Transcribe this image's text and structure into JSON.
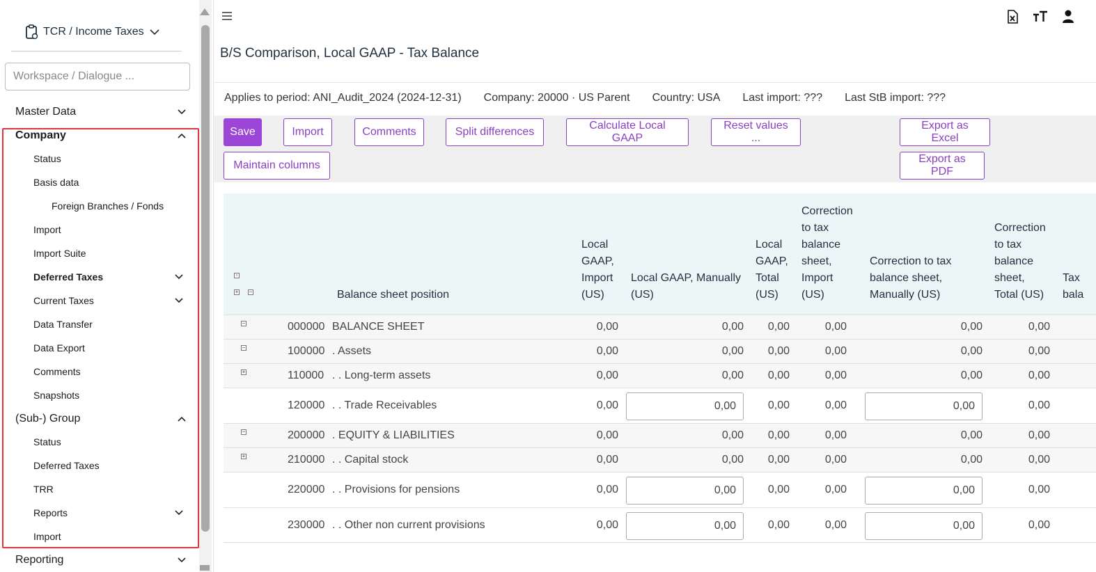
{
  "app": {
    "title": "TCR / Income Taxes",
    "workspace_placeholder": "Workspace / Dialogue ..."
  },
  "sidebar": {
    "master_data": "Master Data",
    "company": {
      "label": "Company",
      "items": [
        "Status",
        "Basis data",
        "Foreign Branches / Fonds",
        "Import",
        "Import Suite",
        "Deferred Taxes",
        "Current Taxes",
        "Data Transfer",
        "Data Export",
        "Comments",
        "Snapshots"
      ]
    },
    "sub_group": {
      "label": "(Sub-) Group",
      "items": [
        "Status",
        "Deferred Taxes",
        "TRR",
        "Reports",
        "Import"
      ]
    },
    "reporting": "Reporting"
  },
  "header": {
    "title": "B/S Comparison, Local GAAP - Tax Balance"
  },
  "info": {
    "period": "Applies to period: ANI_Audit_2024 (2024-12-31)",
    "company": "Company: 20000 · US Parent",
    "country": "Country: USA",
    "last_import": "Last import: ???",
    "last_stb_import": "Last StB import: ???"
  },
  "toolbar": {
    "save": "Save",
    "import": "Import",
    "comments": "Comments",
    "split": "Split differences",
    "calc": "Calculate Local GAAP",
    "reset": "Reset values ...",
    "excel": "Export as Excel",
    "maintain": "Maintain columns",
    "pdf": "Export as PDF"
  },
  "table": {
    "headers": {
      "position": "Balance sheet position",
      "lg_import": "Local\nGAAP,\nImport\n(US)",
      "lg_manual": "Local GAAP, Manually\n(US)",
      "lg_total": "Local\nGAAP,\nTotal\n(US)",
      "ct_import": "Correction\nto tax\nbalance\nsheet,\nImport\n(US)",
      "ct_manual": "Correction to tax\nbalance sheet,\nManually (US)",
      "ct_total": "Correction\nto tax\nbalance\nsheet,\nTotal (US)",
      "tax": "Tax\nbala"
    },
    "rows": [
      {
        "code": "000000",
        "label": "BALANCE SHEET",
        "exp": "−",
        "edit": false,
        "vals": [
          "0,00",
          "0,00",
          "0,00",
          "0,00",
          "0,00",
          "0,00"
        ]
      },
      {
        "code": "100000",
        "label": ". Assets",
        "exp": "−",
        "edit": false,
        "vals": [
          "0,00",
          "0,00",
          "0,00",
          "0,00",
          "0,00",
          "0,00"
        ]
      },
      {
        "code": "110000",
        "label": ". . Long-term assets",
        "exp": "+",
        "edit": false,
        "vals": [
          "0,00",
          "0,00",
          "0,00",
          "0,00",
          "0,00",
          "0,00"
        ]
      },
      {
        "code": "120000",
        "label": ". . Trade Receivables",
        "exp": "",
        "edit": true,
        "vals": [
          "0,00",
          "0,00",
          "0,00",
          "0,00",
          "0,00",
          "0,00"
        ]
      },
      {
        "code": "200000",
        "label": ". EQUITY & LIABILITIES",
        "exp": "−",
        "edit": false,
        "vals": [
          "0,00",
          "0,00",
          "0,00",
          "0,00",
          "0,00",
          "0,00"
        ]
      },
      {
        "code": "210000",
        "label": ". . Capital stock",
        "exp": "+",
        "edit": false,
        "vals": [
          "0,00",
          "0,00",
          "0,00",
          "0,00",
          "0,00",
          "0,00"
        ]
      },
      {
        "code": "220000",
        "label": ". . Provisions for pensions",
        "exp": "",
        "edit": true,
        "vals": [
          "0,00",
          "0,00",
          "0,00",
          "0,00",
          "0,00",
          "0,00"
        ]
      },
      {
        "code": "230000",
        "label": ". . Other non current provisions",
        "exp": "",
        "edit": true,
        "vals": [
          "0,00",
          "0,00",
          "0,00",
          "0,00",
          "0,00",
          "0,00"
        ]
      }
    ]
  },
  "icons": [
    "clipboard-icon",
    "chevron-down-icon",
    "menu-icon",
    "excel-icon",
    "text-size-icon",
    "user-icon"
  ]
}
